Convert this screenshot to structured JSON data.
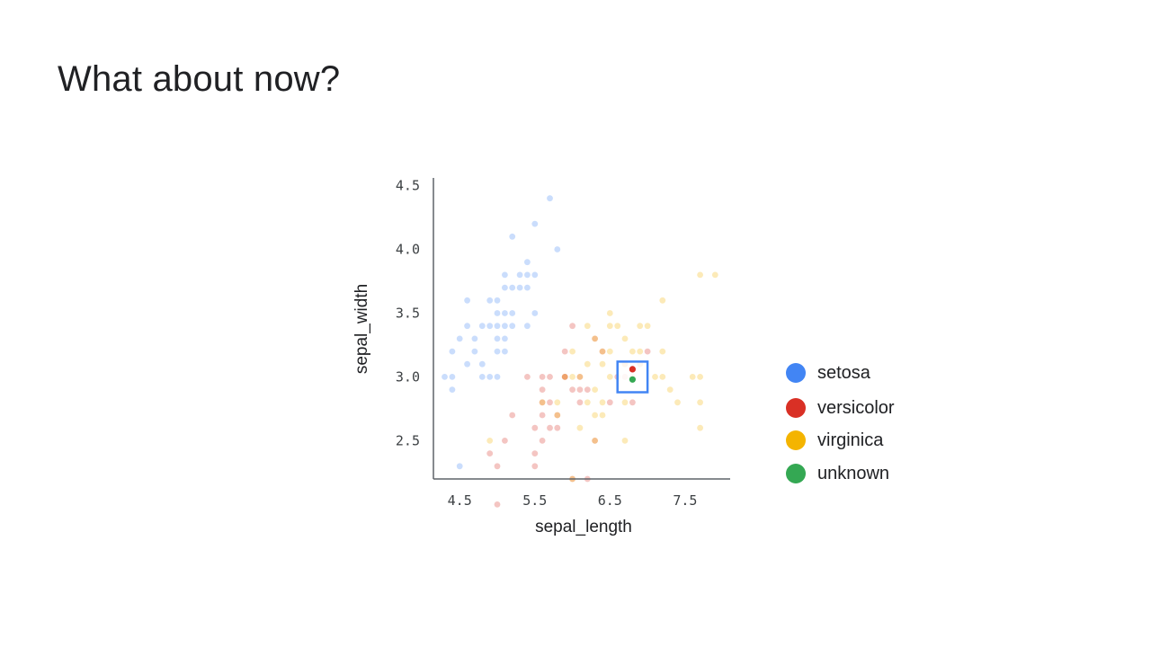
{
  "slide": {
    "title": "What about now?"
  },
  "legend": [
    {
      "label": "setosa",
      "color": "#4285f4"
    },
    {
      "label": "versicolor",
      "color": "#d93025"
    },
    {
      "label": "virginica",
      "color": "#f4b400"
    },
    {
      "label": "unknown",
      "color": "#34a853"
    }
  ],
  "chart_data": {
    "type": "scatter",
    "title": "",
    "xlabel": "sepal_length",
    "ylabel": "sepal_width",
    "xlim": [
      4.15,
      8.1
    ],
    "ylim": [
      2.2,
      4.56
    ],
    "xticks": [
      "4.5",
      "5.5",
      "6.5",
      "7.5"
    ],
    "yticks": [
      "4.5",
      "4.0",
      "3.5",
      "3.0",
      "2.5"
    ],
    "grid": false,
    "legend_position": "right",
    "highlight": {
      "x": [
        6.6,
        7.0
      ],
      "y": [
        2.88,
        3.12
      ],
      "color": "#4285f4"
    },
    "series": [
      {
        "name": "setosa",
        "color": "#4285f4",
        "faded": true,
        "points": [
          [
            5.7,
            4.4
          ],
          [
            5.4,
            3.9
          ],
          [
            5.5,
            4.2
          ],
          [
            5.2,
            4.1
          ],
          [
            5.8,
            4.0
          ],
          [
            5.3,
            3.7
          ],
          [
            5.1,
            3.8
          ],
          [
            5.2,
            3.5
          ],
          [
            4.6,
            3.6
          ],
          [
            4.8,
            3.4
          ],
          [
            5.0,
            3.3
          ],
          [
            5.4,
            3.4
          ],
          [
            5.0,
            3.6
          ],
          [
            4.9,
            3.6
          ],
          [
            5.1,
            3.5
          ],
          [
            5.0,
            3.5
          ],
          [
            5.1,
            3.3
          ],
          [
            5.2,
            3.4
          ],
          [
            4.5,
            3.3
          ],
          [
            4.7,
            3.2
          ],
          [
            4.8,
            3.1
          ],
          [
            4.4,
            3.2
          ],
          [
            4.3,
            3.0
          ],
          [
            4.4,
            2.9
          ],
          [
            4.7,
            3.3
          ],
          [
            4.6,
            3.1
          ],
          [
            5.4,
            3.7
          ],
          [
            5.0,
            3.4
          ],
          [
            5.1,
            3.4
          ],
          [
            5.2,
            3.7
          ],
          [
            4.9,
            3.4
          ],
          [
            4.4,
            3.0
          ],
          [
            4.5,
            2.3
          ],
          [
            4.9,
            3.0
          ],
          [
            4.8,
            3.0
          ],
          [
            5.0,
            3.0
          ],
          [
            4.6,
            3.4
          ],
          [
            5.1,
            3.2
          ],
          [
            5.0,
            3.2
          ],
          [
            5.1,
            3.7
          ],
          [
            5.3,
            3.8
          ],
          [
            5.5,
            3.8
          ],
          [
            5.5,
            3.5
          ],
          [
            5.4,
            3.8
          ]
        ]
      },
      {
        "name": "versicolor",
        "color": "#d93025",
        "faded": true,
        "points": [
          [
            5.0,
            2.0
          ],
          [
            5.0,
            2.3
          ],
          [
            4.9,
            2.4
          ],
          [
            5.1,
            2.5
          ],
          [
            5.2,
            2.7
          ],
          [
            5.4,
            3.0
          ],
          [
            5.5,
            2.3
          ],
          [
            5.6,
            3.0
          ],
          [
            5.6,
            2.9
          ],
          [
            5.6,
            2.7
          ],
          [
            5.6,
            2.5
          ],
          [
            5.5,
            2.4
          ],
          [
            5.7,
            3.0
          ],
          [
            5.7,
            2.8
          ],
          [
            5.7,
            2.6
          ],
          [
            5.8,
            2.7
          ],
          [
            5.8,
            2.6
          ],
          [
            5.9,
            3.0
          ],
          [
            5.9,
            3.2
          ],
          [
            6.0,
            2.2
          ],
          [
            6.0,
            2.9
          ],
          [
            6.0,
            3.4
          ],
          [
            6.1,
            3.0
          ],
          [
            6.1,
            2.9
          ],
          [
            6.1,
            2.8
          ],
          [
            6.2,
            2.2
          ],
          [
            6.2,
            2.9
          ],
          [
            6.3,
            2.5
          ],
          [
            6.3,
            3.3
          ],
          [
            6.4,
            3.2
          ],
          [
            6.5,
            2.8
          ],
          [
            6.6,
            3.0
          ],
          [
            6.7,
            3.1
          ],
          [
            6.7,
            3.0
          ],
          [
            6.8,
            2.8
          ],
          [
            6.9,
            3.1
          ],
          [
            7.0,
            3.2
          ],
          [
            5.5,
            2.6
          ],
          [
            5.6,
            2.8
          ],
          [
            5.9,
            3.0
          ]
        ]
      },
      {
        "name": "virginica",
        "color": "#f4b400",
        "faded": true,
        "points": [
          [
            4.9,
            2.5
          ],
          [
            5.6,
            2.8
          ],
          [
            5.8,
            2.7
          ],
          [
            5.8,
            2.8
          ],
          [
            5.9,
            3.0
          ],
          [
            6.0,
            2.2
          ],
          [
            6.0,
            3.0
          ],
          [
            6.1,
            2.6
          ],
          [
            6.1,
            3.0
          ],
          [
            6.2,
            2.8
          ],
          [
            6.2,
            3.4
          ],
          [
            6.3,
            2.5
          ],
          [
            6.3,
            2.7
          ],
          [
            6.3,
            2.9
          ],
          [
            6.3,
            3.3
          ],
          [
            6.4,
            2.7
          ],
          [
            6.4,
            2.8
          ],
          [
            6.4,
            3.1
          ],
          [
            6.4,
            3.2
          ],
          [
            6.5,
            3.0
          ],
          [
            6.5,
            3.2
          ],
          [
            6.7,
            2.5
          ],
          [
            6.7,
            3.1
          ],
          [
            6.7,
            3.3
          ],
          [
            6.8,
            3.0
          ],
          [
            6.9,
            3.1
          ],
          [
            6.9,
            3.2
          ],
          [
            7.1,
            3.0
          ],
          [
            7.2,
            3.0
          ],
          [
            7.2,
            3.2
          ],
          [
            7.2,
            3.6
          ],
          [
            7.3,
            2.9
          ],
          [
            7.4,
            2.8
          ],
          [
            7.6,
            3.0
          ],
          [
            7.7,
            2.6
          ],
          [
            7.7,
            2.8
          ],
          [
            7.7,
            3.0
          ],
          [
            7.7,
            3.8
          ],
          [
            7.9,
            3.8
          ],
          [
            6.5,
            3.5
          ],
          [
            6.6,
            3.4
          ],
          [
            6.8,
            3.2
          ],
          [
            7.0,
            3.4
          ],
          [
            6.9,
            3.4
          ],
          [
            6.2,
            3.1
          ],
          [
            6.5,
            3.4
          ],
          [
            6.0,
            3.2
          ],
          [
            6.7,
            2.8
          ]
        ]
      },
      {
        "name": "versicolor",
        "color": "#d93025",
        "faded": false,
        "points": [
          [
            6.8,
            3.06
          ]
        ]
      },
      {
        "name": "unknown",
        "color": "#34a853",
        "faded": false,
        "points": [
          [
            6.8,
            2.98
          ]
        ]
      }
    ]
  }
}
